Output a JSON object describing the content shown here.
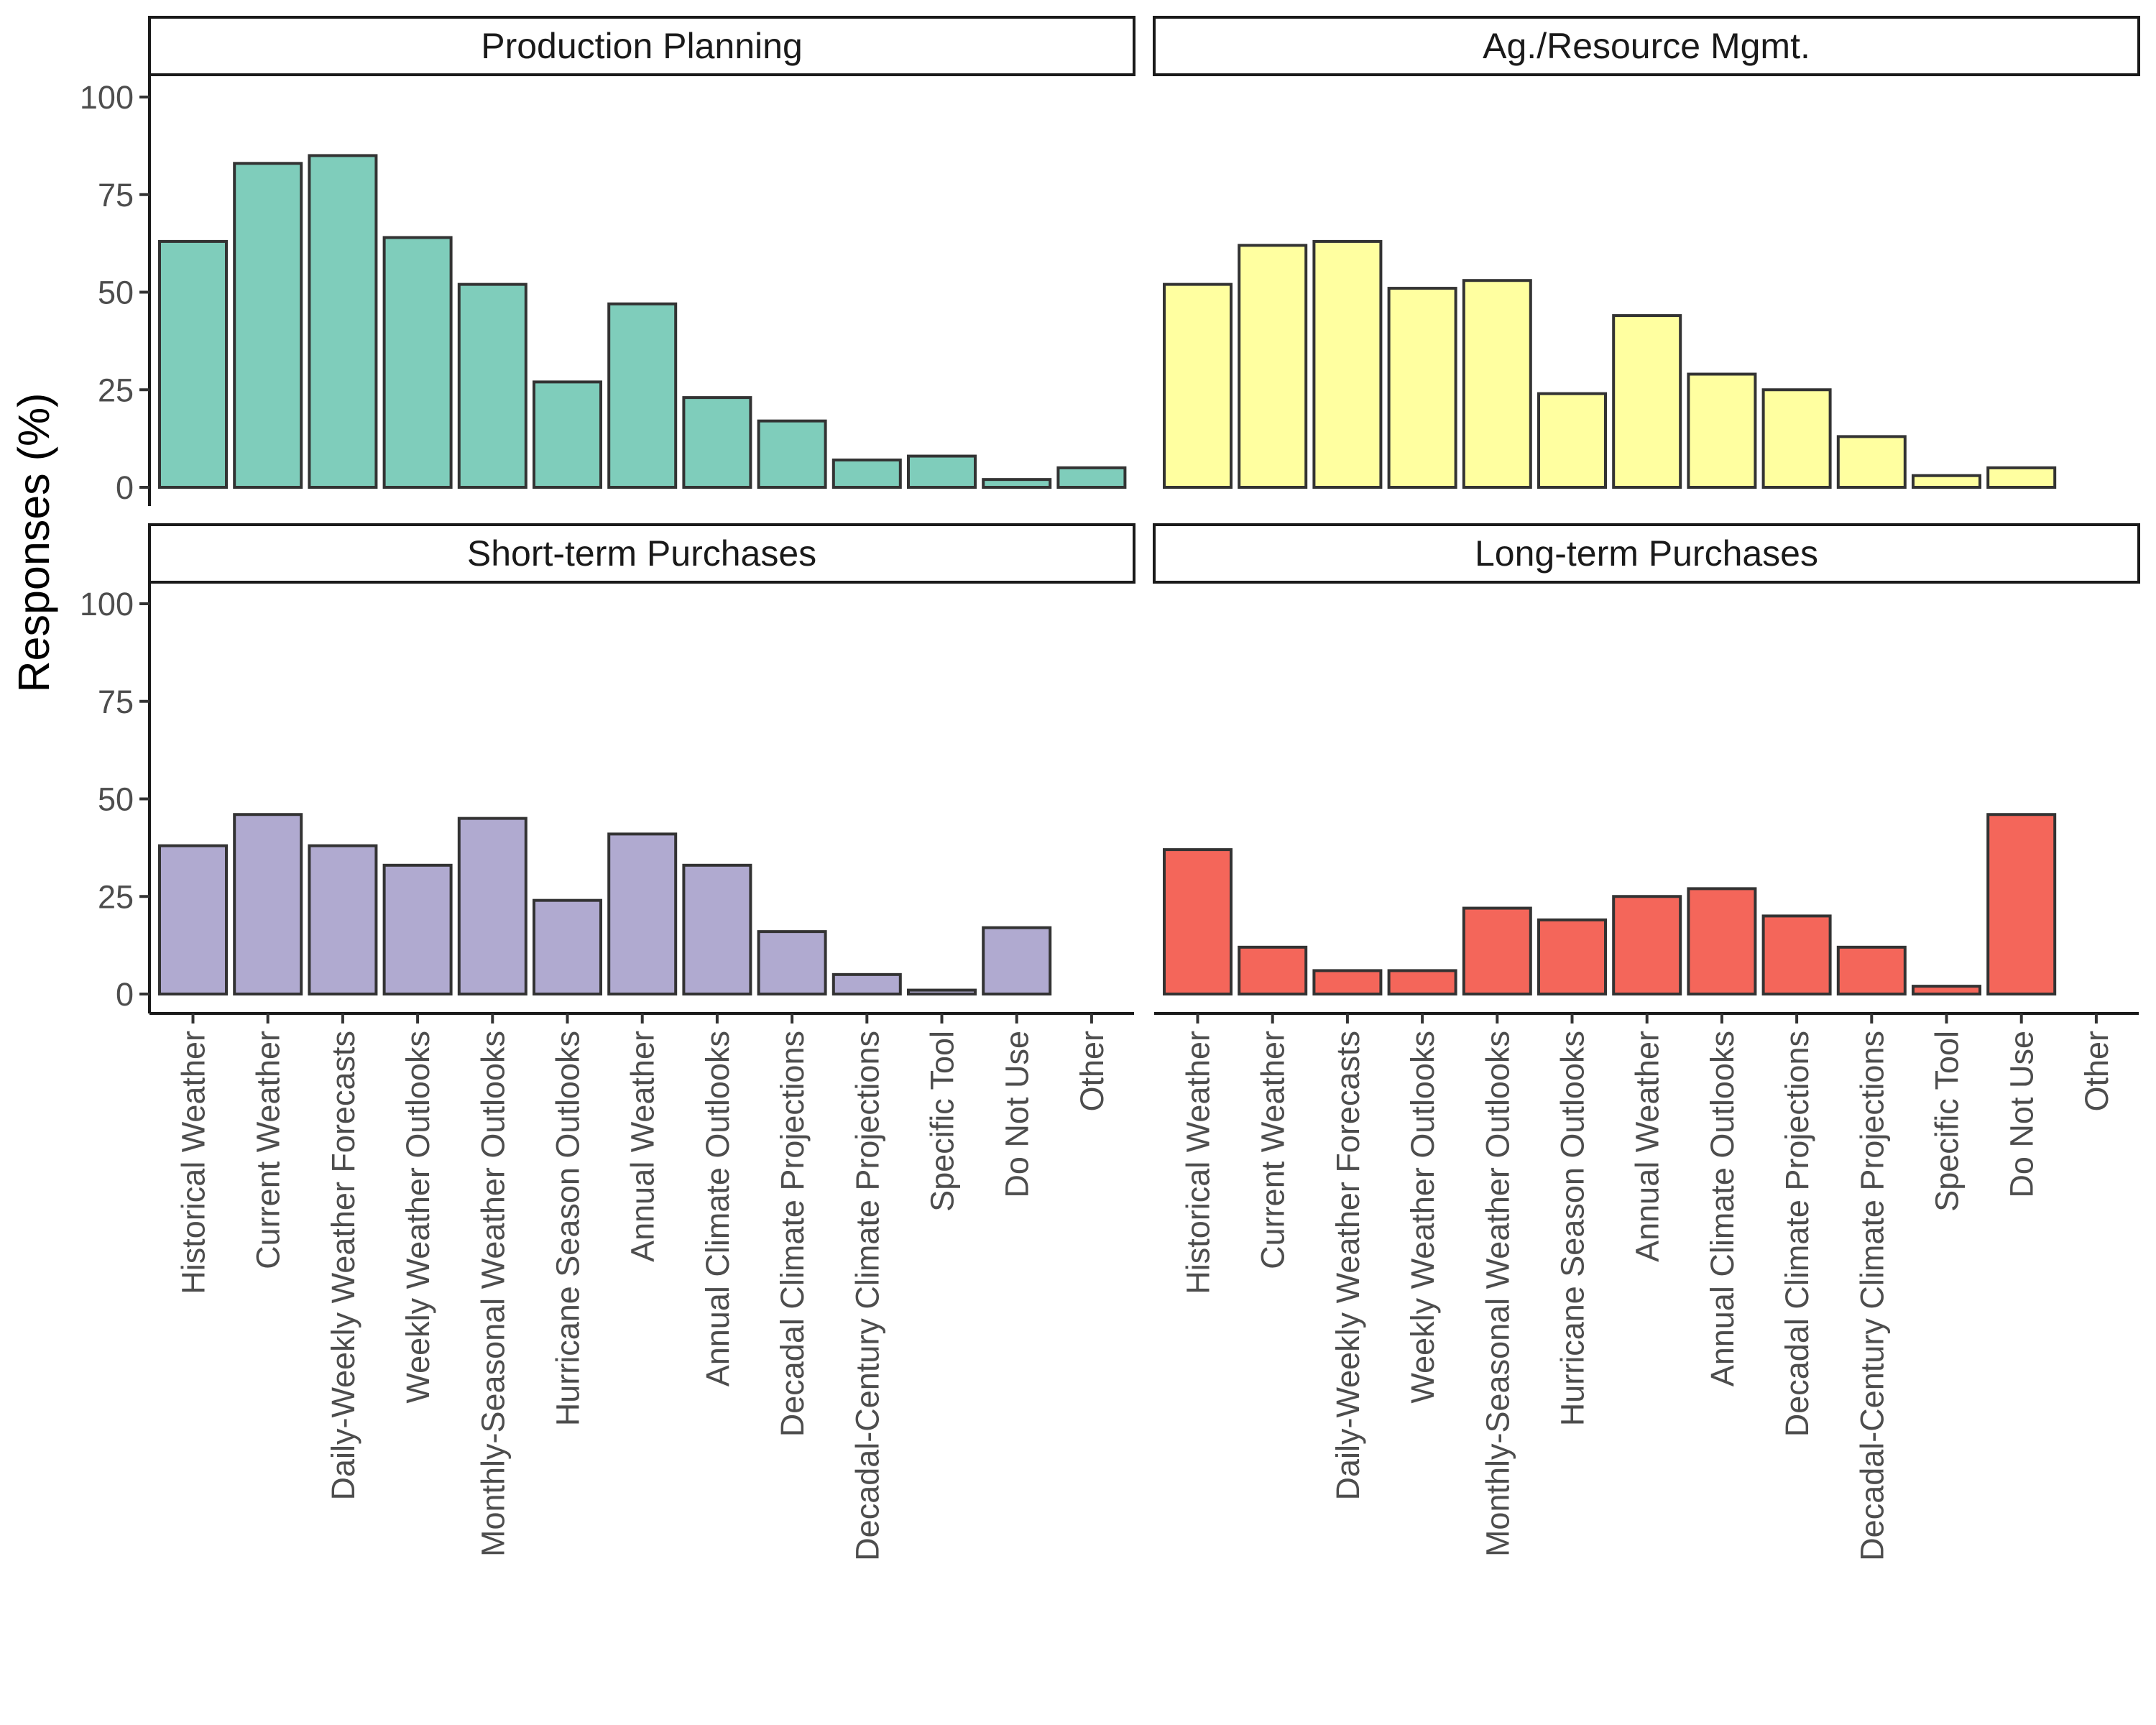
{
  "chart_data": {
    "type": "bar",
    "layout": "facet_wrap 2x2",
    "ylabel": "Responses (%)",
    "xlabel": "",
    "ylim": [
      0,
      100
    ],
    "yticks": [
      0,
      25,
      50,
      75,
      100
    ],
    "grid": false,
    "legend": "none",
    "categories": [
      "Historical Weather",
      "Current Weather",
      "Daily-Weekly Weather Forecasts",
      "Weekly Weather Outlooks",
      "Monthly-Seasonal Weather Outlooks",
      "Hurricane Season Outlooks",
      "Annual Weather",
      "Annual Climate Outlooks",
      "Decadal Climate Projections",
      "Decadal-Century Climate Projections",
      "Specific Tool",
      "Do Not Use",
      "Other"
    ],
    "series": [
      {
        "name": "Production Planning",
        "color": "#7fcdbb",
        "values": [
          63,
          83,
          85,
          64,
          52,
          27,
          47,
          23,
          17,
          7,
          8,
          2,
          5
        ]
      },
      {
        "name": "Ag./Resource Mgmt.",
        "color": "#ffffa0",
        "values": [
          52,
          62,
          63,
          51,
          53,
          24,
          44,
          29,
          25,
          13,
          3,
          5,
          null
        ]
      },
      {
        "name": "Short-term Purchases",
        "color": "#b0aad0",
        "values": [
          38,
          46,
          38,
          33,
          45,
          24,
          41,
          33,
          16,
          5,
          1,
          17,
          null
        ]
      },
      {
        "name": "Long-term Purchases",
        "color": "#f4665a",
        "values": [
          37,
          12,
          6,
          6,
          22,
          19,
          25,
          27,
          20,
          12,
          2,
          46,
          null
        ]
      }
    ]
  }
}
